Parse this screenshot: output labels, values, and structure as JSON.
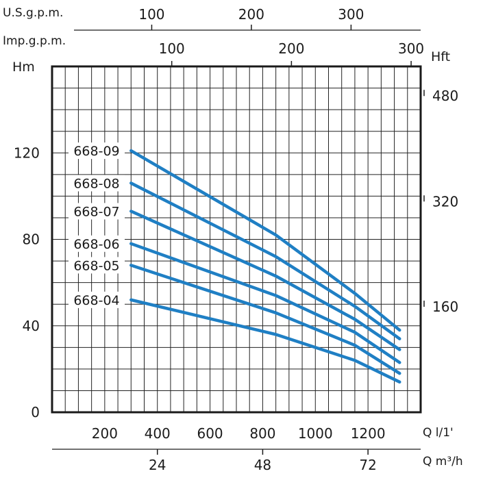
{
  "chart_data": {
    "type": "line",
    "title": "",
    "xlabel": "Q l/1'",
    "ylabel": "Hm",
    "y2label": "Hft",
    "xlim": [
      0,
      1400
    ],
    "ylim": [
      0,
      160
    ],
    "grid": true,
    "x_ticks": [
      200,
      400,
      600,
      800,
      1000,
      1200
    ],
    "y_ticks": [
      0,
      40,
      80,
      120
    ],
    "y2_ticks": [
      {
        "label": "160",
        "value": 48.8
      },
      {
        "label": "320",
        "value": 97.5
      },
      {
        "label": "480",
        "value": 146.3
      }
    ],
    "top_axes": [
      {
        "label": "U.S.g.p.m.",
        "ticks": [
          {
            "label": "100",
            "value": 378.5
          },
          {
            "label": "200",
            "value": 757
          },
          {
            "label": "300",
            "value": 1135.6
          }
        ]
      },
      {
        "label": "Imp.g.p.m.",
        "ticks": [
          {
            "label": "100",
            "value": 454.6
          },
          {
            "label": "200",
            "value": 909.2
          },
          {
            "label": "300",
            "value": 1363.8
          }
        ]
      }
    ],
    "bottom_axis2": {
      "label": "Q m³/h",
      "ticks": [
        {
          "label": "24",
          "value": 400
        },
        {
          "label": "48",
          "value": 800
        },
        {
          "label": "72",
          "value": 1200
        }
      ]
    },
    "series_color": "#1f7fc4",
    "series": [
      {
        "name": "668-09",
        "x": [
          300,
          850,
          1150,
          1320
        ],
        "y": [
          121,
          82,
          55,
          38
        ]
      },
      {
        "name": "668-08",
        "x": [
          300,
          850,
          1150,
          1320
        ],
        "y": [
          106,
          72,
          49,
          34
        ]
      },
      {
        "name": "668-07",
        "x": [
          300,
          850,
          1150,
          1320
        ],
        "y": [
          93,
          63,
          43,
          29
        ]
      },
      {
        "name": "668-06",
        "x": [
          300,
          850,
          1150,
          1320
        ],
        "y": [
          78,
          54,
          37,
          23
        ]
      },
      {
        "name": "668-05",
        "x": [
          300,
          850,
          1150,
          1320
        ],
        "y": [
          68,
          46,
          31,
          18
        ]
      },
      {
        "name": "668-04",
        "x": [
          300,
          850,
          1150,
          1320
        ],
        "y": [
          52,
          36,
          24,
          14
        ]
      }
    ]
  }
}
